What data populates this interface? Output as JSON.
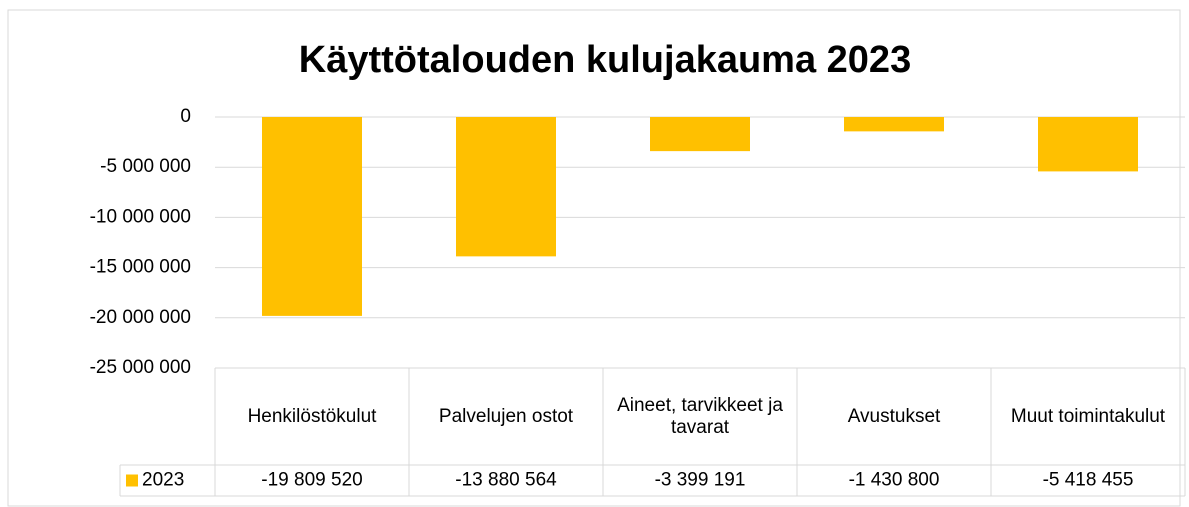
{
  "chart_data": {
    "type": "bar",
    "title": "Käyttötalouden kulujakauma 2023",
    "categories": [
      "Henkilöstökulut",
      "Palvelujen ostot",
      "Aineet, tarvikkeet ja tavarat",
      "Avustukset",
      "Muut toimintakulut"
    ],
    "series": [
      {
        "name": "2023",
        "color": "#ffc000",
        "values": [
          -19809520,
          -13880564,
          -3399191,
          -1430800,
          -5418455
        ],
        "value_labels": [
          "-19 809 520",
          "-13 880 564",
          "-3 399 191",
          "-1 430 800",
          "-5 418 455"
        ]
      }
    ],
    "ylim": [
      -25000000,
      0
    ],
    "yticks": [
      0,
      {
        "value": -5000000,
        "label": "-5 000 000"
      },
      {
        "value": -10000000,
        "label": "-10 000 000"
      },
      {
        "value": -15000000,
        "label": "-15 000 000"
      },
      {
        "value": -20000000,
        "label": "-20 000 000"
      },
      {
        "value": -25000000,
        "label": "-25 000 000"
      }
    ],
    "grid": true
  }
}
